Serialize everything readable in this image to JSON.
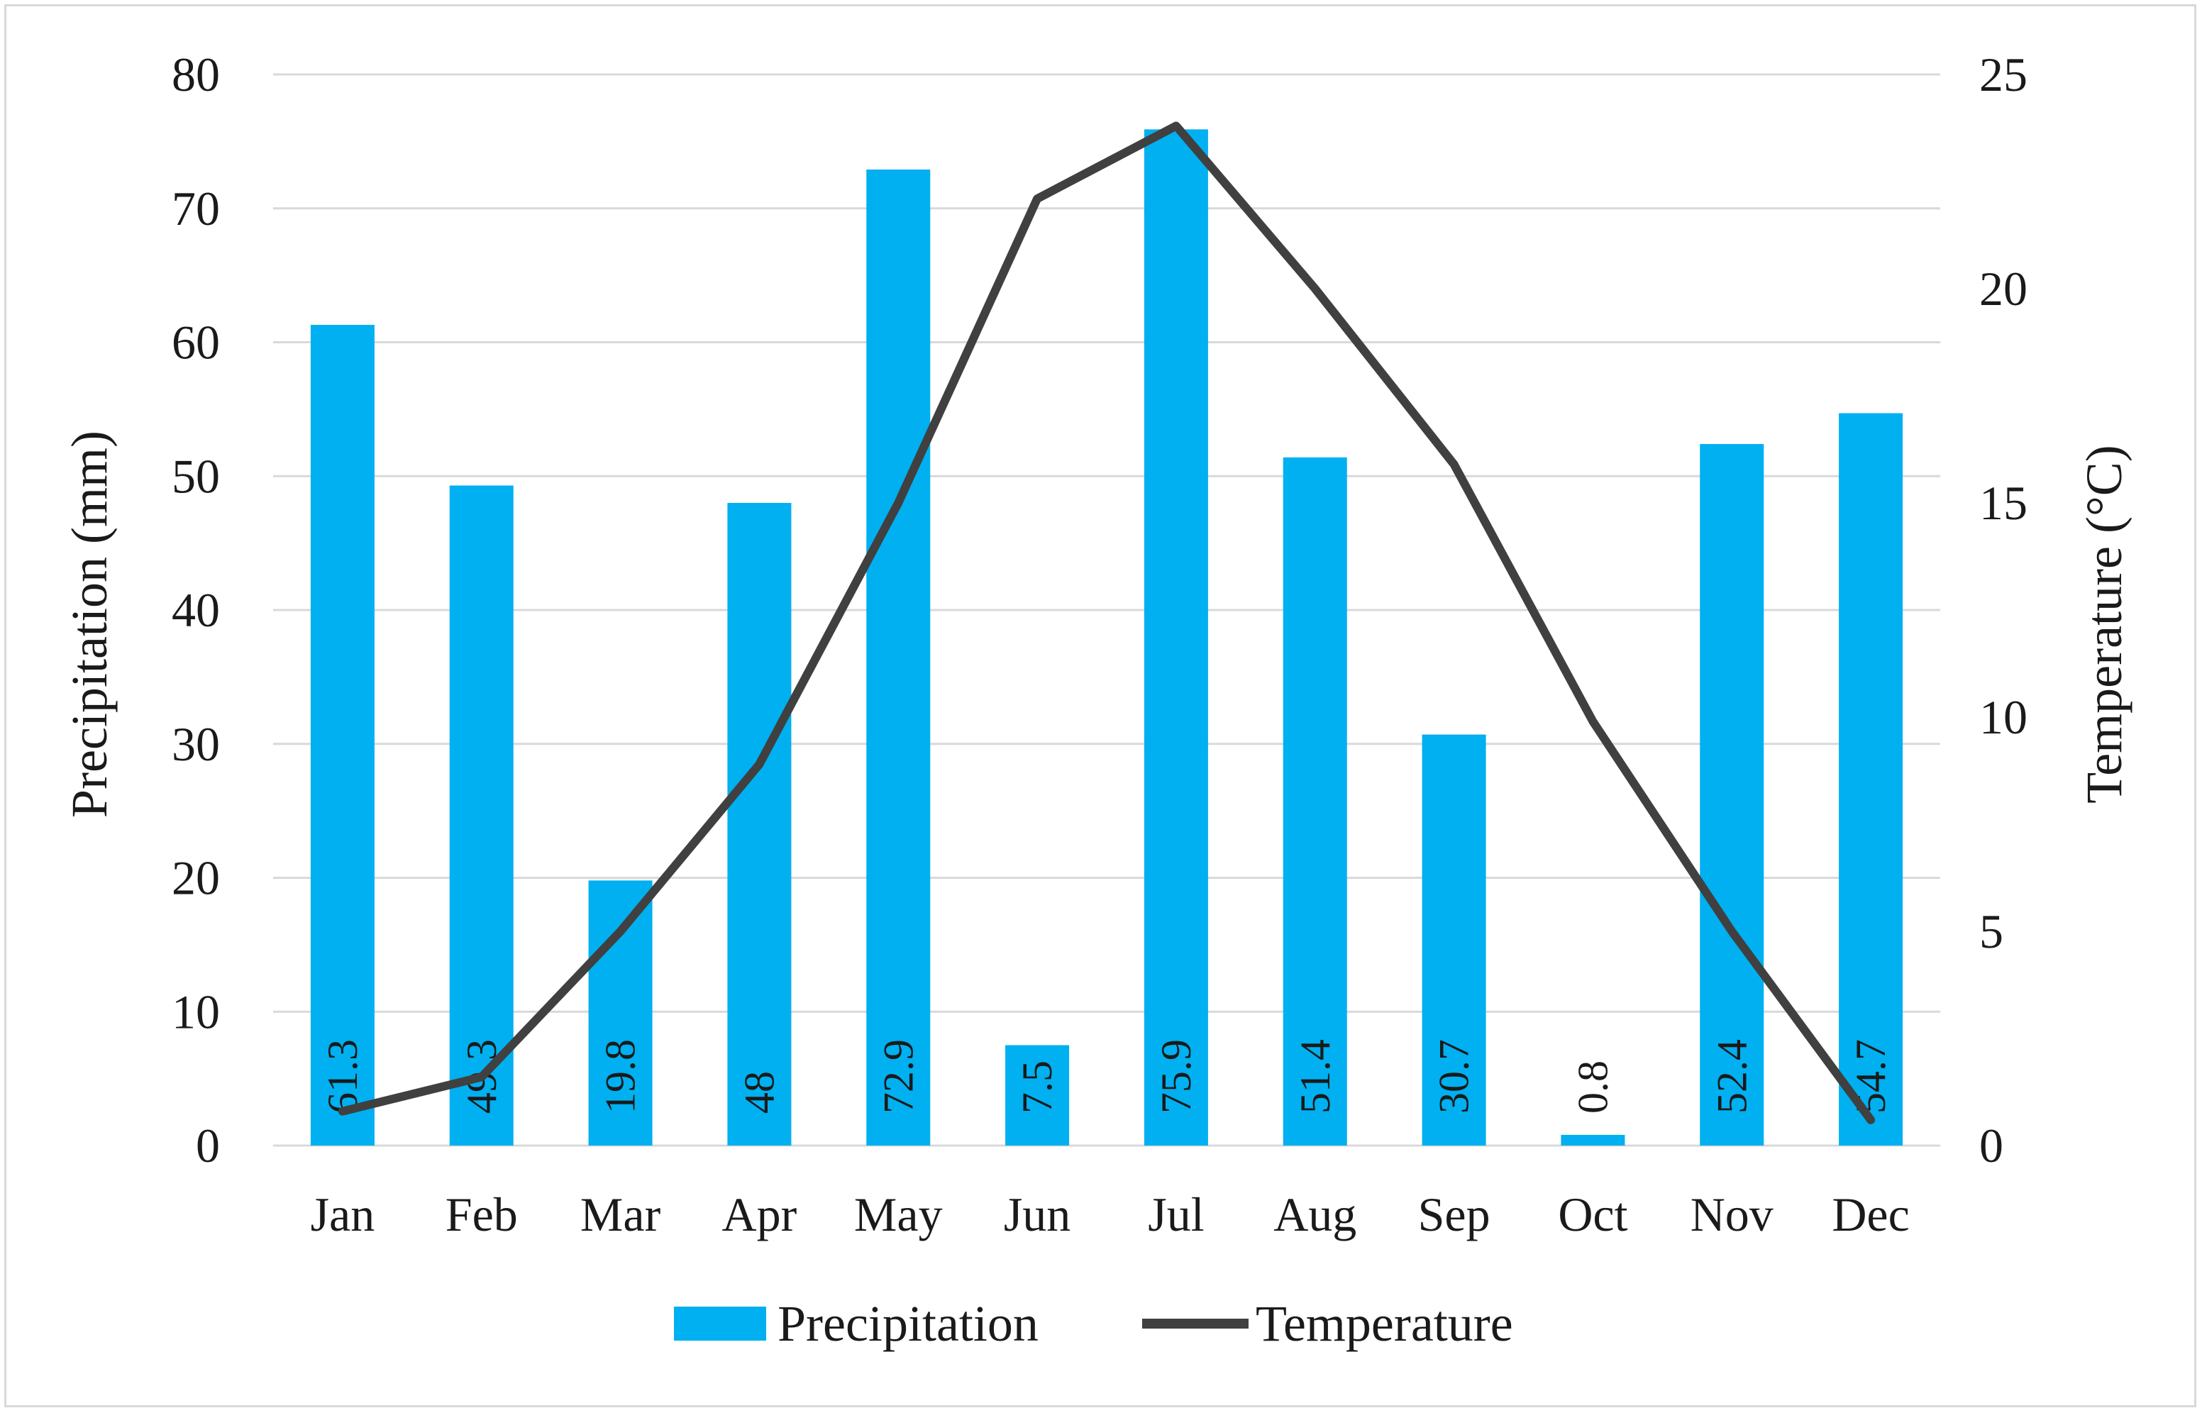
{
  "chart_data": {
    "type": "bar",
    "title": "",
    "categories": [
      "Jan",
      "Feb",
      "Mar",
      "Apr",
      "May",
      "Jun",
      "Jul",
      "Aug",
      "Sep",
      "Oct",
      "Nov",
      "Dec"
    ],
    "series": [
      {
        "name": "Precipitation",
        "type": "bar",
        "axis": "left",
        "color": "#00b0f0",
        "values": [
          61.3,
          49.3,
          19.8,
          48,
          72.9,
          7.5,
          75.9,
          51.4,
          30.7,
          0.8,
          52.4,
          54.7
        ],
        "labels": [
          "61.3",
          "49.3",
          "19.8",
          "48",
          "72.9",
          "7.5",
          "75.9",
          "51.4",
          "30.7",
          "0.8",
          "52.4",
          "54.7"
        ]
      },
      {
        "name": "Temperature",
        "type": "line",
        "axis": "right",
        "color": "#404040",
        "values": [
          0.8,
          1.6,
          5.0,
          8.9,
          15.0,
          22.1,
          23.8,
          20.0,
          15.9,
          9.9,
          5.0,
          0.6
        ]
      }
    ],
    "y_left": {
      "label": "Precipitation (mm)",
      "min": 0,
      "max": 80,
      "step": 10,
      "ticks": [
        "0",
        "10",
        "20",
        "30",
        "40",
        "50",
        "60",
        "70",
        "80"
      ]
    },
    "y_right": {
      "label": "Temperature (°C)",
      "min": 0,
      "max": 25,
      "step": 5,
      "ticks": [
        "0",
        "5",
        "10",
        "15",
        "20",
        "25"
      ]
    },
    "grid": true,
    "legend": {
      "position": "bottom",
      "items": [
        {
          "name": "Precipitation",
          "color": "#00b0f0"
        },
        {
          "name": "Temperature",
          "color": "#404040"
        }
      ]
    },
    "colors": {
      "grid": "#d9d9d9",
      "axis_line": "#d9d9d9"
    }
  }
}
